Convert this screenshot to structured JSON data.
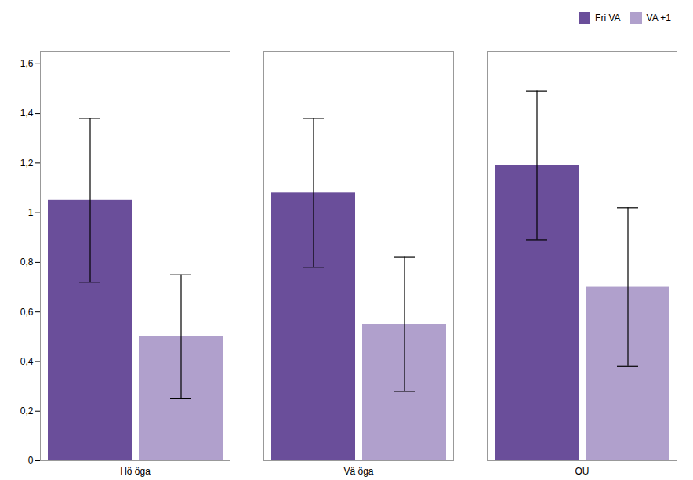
{
  "chart_data": {
    "type": "bar",
    "categories": [
      "Hö öga",
      "Vä öga",
      "OU"
    ],
    "series": [
      {
        "name": "Fri VA",
        "color": "#6A4E9A",
        "values": [
          1.05,
          1.08,
          1.19
        ],
        "errors": [
          0.33,
          0.3,
          0.3
        ]
      },
      {
        "name": "VA +1",
        "color": "#B0A0CC",
        "values": [
          0.5,
          0.55,
          0.7
        ],
        "errors": [
          0.25,
          0.27,
          0.32
        ]
      }
    ],
    "ylim": [
      0,
      1.65
    ],
    "yticks": [
      0,
      {
        "value": 0.2,
        "label": "0,2"
      },
      {
        "value": 0.4,
        "label": "0,4"
      },
      {
        "value": 0.6,
        "label": "0,6"
      },
      {
        "value": 0.8,
        "label": "0,8"
      },
      1,
      {
        "value": 1.2,
        "label": "1,2"
      },
      {
        "value": 1.4,
        "label": "1,4"
      },
      {
        "value": 1.6,
        "label": "1,6"
      }
    ],
    "grid": false,
    "legend": "upper right"
  }
}
